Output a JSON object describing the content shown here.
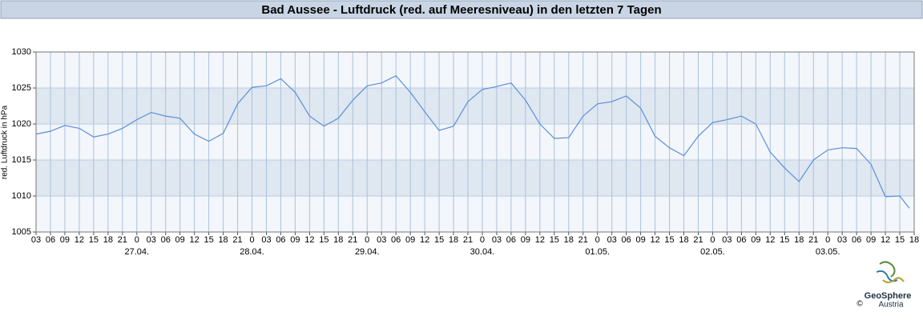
{
  "chart_data": {
    "type": "line",
    "title": "Bad Aussee - Luftdruck (red. auf Meeresniveau) in den letzten 7 Tagen",
    "y_label": "red. Luftdruck in hPa",
    "color": "#5b8fd9",
    "x": [
      0,
      3,
      6,
      9,
      12,
      15,
      18,
      21,
      24,
      27,
      30,
      33,
      36,
      39,
      42,
      45,
      48,
      51,
      54,
      57,
      60,
      63,
      66,
      69,
      72,
      75,
      78,
      81,
      84,
      87,
      90,
      93,
      96,
      99,
      102,
      105,
      108,
      111,
      114,
      117,
      120,
      123,
      126,
      129,
      132,
      135,
      138,
      141,
      144,
      147,
      150,
      153,
      156,
      159,
      162,
      165,
      168,
      171,
      174,
      177,
      180,
      182
    ],
    "values": [
      1018.6,
      1019.0,
      1019.8,
      1019.4,
      1018.2,
      1018.6,
      1019.4,
      1020.6,
      1021.6,
      1021.1,
      1020.8,
      1018.6,
      1017.6,
      1018.7,
      1022.8,
      1025.1,
      1025.3,
      1026.3,
      1024.4,
      1021.1,
      1019.7,
      1020.8,
      1023.3,
      1025.3,
      1025.7,
      1026.7,
      1024.4,
      1021.7,
      1019.1,
      1019.7,
      1023.1,
      1024.8,
      1025.2,
      1025.7,
      1023.3,
      1020.0,
      1018.0,
      1018.1,
      1021.1,
      1022.8,
      1023.1,
      1023.9,
      1022.2,
      1018.3,
      1016.7,
      1015.6,
      1018.3,
      1020.2,
      1020.6,
      1021.1,
      1020.0,
      1016.1,
      1013.9,
      1012.0,
      1015.0,
      1016.4,
      1016.7,
      1016.6,
      1014.4,
      1009.9,
      1010.0,
      1008.3
    ],
    "xlim": [
      0,
      183
    ],
    "ylim": [
      1005,
      1030
    ],
    "yticks": [
      1005,
      1010,
      1015,
      1020,
      1025,
      1030
    ],
    "xticks": [
      {
        "value": 0,
        "label": "03"
      },
      {
        "value": 3,
        "label": "06"
      },
      {
        "value": 6,
        "label": "09"
      },
      {
        "value": 9,
        "label": "12"
      },
      {
        "value": 12,
        "label": "15"
      },
      {
        "value": 15,
        "label": "18"
      },
      {
        "value": 18,
        "label": "21"
      },
      {
        "value": 21,
        "label": "0"
      },
      {
        "value": 24,
        "label": "03"
      },
      {
        "value": 27,
        "label": "06"
      },
      {
        "value": 30,
        "label": "09"
      },
      {
        "value": 33,
        "label": "12"
      },
      {
        "value": 36,
        "label": "15"
      },
      {
        "value": 39,
        "label": "18"
      },
      {
        "value": 42,
        "label": "21"
      },
      {
        "value": 45,
        "label": "0"
      },
      {
        "value": 48,
        "label": "03"
      },
      {
        "value": 51,
        "label": "06"
      },
      {
        "value": 54,
        "label": "09"
      },
      {
        "value": 57,
        "label": "12"
      },
      {
        "value": 60,
        "label": "15"
      },
      {
        "value": 63,
        "label": "18"
      },
      {
        "value": 66,
        "label": "21"
      },
      {
        "value": 69,
        "label": "0"
      },
      {
        "value": 72,
        "label": "03"
      },
      {
        "value": 75,
        "label": "06"
      },
      {
        "value": 78,
        "label": "09"
      },
      {
        "value": 81,
        "label": "12"
      },
      {
        "value": 84,
        "label": "15"
      },
      {
        "value": 87,
        "label": "18"
      },
      {
        "value": 90,
        "label": "21"
      },
      {
        "value": 93,
        "label": "0"
      },
      {
        "value": 96,
        "label": "03"
      },
      {
        "value": 99,
        "label": "06"
      },
      {
        "value": 102,
        "label": "09"
      },
      {
        "value": 105,
        "label": "12"
      },
      {
        "value": 108,
        "label": "15"
      },
      {
        "value": 111,
        "label": "18"
      },
      {
        "value": 114,
        "label": "21"
      },
      {
        "value": 117,
        "label": "0"
      },
      {
        "value": 120,
        "label": "03"
      },
      {
        "value": 123,
        "label": "06"
      },
      {
        "value": 126,
        "label": "09"
      },
      {
        "value": 129,
        "label": "12"
      },
      {
        "value": 132,
        "label": "15"
      },
      {
        "value": 135,
        "label": "18"
      },
      {
        "value": 138,
        "label": "21"
      },
      {
        "value": 141,
        "label": "0"
      },
      {
        "value": 144,
        "label": "03"
      },
      {
        "value": 147,
        "label": "06"
      },
      {
        "value": 150,
        "label": "09"
      },
      {
        "value": 153,
        "label": "12"
      },
      {
        "value": 156,
        "label": "15"
      },
      {
        "value": 159,
        "label": "18"
      },
      {
        "value": 162,
        "label": "21"
      },
      {
        "value": 165,
        "label": "0"
      },
      {
        "value": 168,
        "label": "03"
      },
      {
        "value": 171,
        "label": "06"
      },
      {
        "value": 174,
        "label": "09"
      },
      {
        "value": 177,
        "label": "12"
      },
      {
        "value": 180,
        "label": "15"
      },
      {
        "value": 183,
        "label": "18"
      }
    ],
    "day_labels": [
      {
        "value": 21,
        "label": "27.04."
      },
      {
        "value": 45,
        "label": "28.04."
      },
      {
        "value": 69,
        "label": "29.04."
      },
      {
        "value": 93,
        "label": "30.04."
      },
      {
        "value": 117,
        "label": "01.05."
      },
      {
        "value": 141,
        "label": "02.05."
      },
      {
        "value": 165,
        "label": "03.05."
      }
    ],
    "grid": true,
    "logo": {
      "name": "GeoSphere",
      "country": "Austria",
      "copyright": "©"
    }
  }
}
